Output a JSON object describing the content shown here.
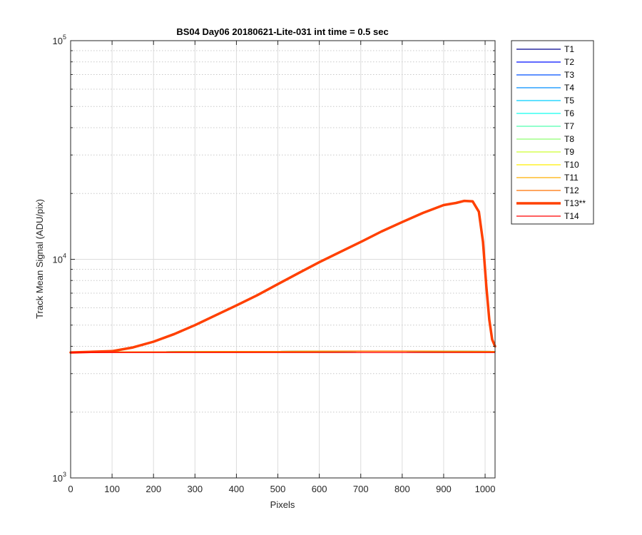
{
  "chart_data": {
    "type": "line",
    "title": "BS04 Day06 20180621-Lite-031 int time = 0.5 sec",
    "xlabel": "Pixels",
    "ylabel": "Track Mean Signal (ADU/pix)",
    "xlim": [
      0,
      1024
    ],
    "ylim": [
      1000,
      100000
    ],
    "yscale": "log",
    "grid": true,
    "legend_position": "outside-top-right",
    "x_ticks": [
      {
        "v": 0,
        "label": "0"
      },
      {
        "v": 100,
        "label": "100"
      },
      {
        "v": 200,
        "label": "200"
      },
      {
        "v": 300,
        "label": "300"
      },
      {
        "v": 400,
        "label": "400"
      },
      {
        "v": 500,
        "label": "500"
      },
      {
        "v": 600,
        "label": "600"
      },
      {
        "v": 700,
        "label": "700"
      },
      {
        "v": 800,
        "label": "800"
      },
      {
        "v": 900,
        "label": "900"
      },
      {
        "v": 1000,
        "label": "1000"
      }
    ],
    "y_ticks": [
      {
        "v": 1000,
        "base": "10",
        "exp": "3"
      },
      {
        "v": 10000,
        "base": "10",
        "exp": "4"
      },
      {
        "v": 100000,
        "base": "10",
        "exp": "5"
      }
    ],
    "series": [
      {
        "name": "T1",
        "color": "#00008f",
        "width": 1.3,
        "x": [
          0,
          100,
          300,
          500,
          700,
          800,
          900,
          1024
        ],
        "y": [
          3750,
          3765,
          3780,
          3790,
          3800,
          3800,
          3795,
          3790
        ]
      },
      {
        "name": "T2",
        "color": "#0010ff",
        "width": 1.3,
        "x": [
          0,
          100,
          300,
          500,
          700,
          800,
          900,
          1024
        ],
        "y": [
          3750,
          3765,
          3780,
          3790,
          3800,
          3800,
          3795,
          3790
        ]
      },
      {
        "name": "T3",
        "color": "#0050ff",
        "width": 1.3,
        "x": [
          0,
          100,
          300,
          500,
          700,
          800,
          900,
          1024
        ],
        "y": [
          3750,
          3765,
          3780,
          3790,
          3800,
          3800,
          3795,
          3790
        ]
      },
      {
        "name": "T4",
        "color": "#008fff",
        "width": 1.3,
        "x": [
          0,
          100,
          300,
          500,
          700,
          800,
          900,
          1024
        ],
        "y": [
          3750,
          3765,
          3780,
          3790,
          3800,
          3800,
          3795,
          3790
        ]
      },
      {
        "name": "T5",
        "color": "#00cfff",
        "width": 1.3,
        "x": [
          0,
          100,
          300,
          500,
          700,
          800,
          900,
          1024
        ],
        "y": [
          3750,
          3765,
          3780,
          3790,
          3800,
          3800,
          3795,
          3790
        ]
      },
      {
        "name": "T6",
        "color": "#10ffef",
        "width": 1.3,
        "x": [
          0,
          100,
          300,
          500,
          700,
          800,
          900,
          1024
        ],
        "y": [
          3750,
          3765,
          3780,
          3790,
          3800,
          3800,
          3795,
          3790
        ]
      },
      {
        "name": "T7",
        "color": "#50ffaf",
        "width": 1.3,
        "x": [
          0,
          100,
          300,
          500,
          700,
          800,
          900,
          1024
        ],
        "y": [
          3750,
          3765,
          3780,
          3790,
          3800,
          3800,
          3795,
          3790
        ]
      },
      {
        "name": "T8",
        "color": "#8fff70",
        "width": 1.3,
        "x": [
          0,
          100,
          300,
          500,
          700,
          800,
          900,
          1024
        ],
        "y": [
          3750,
          3765,
          3780,
          3790,
          3800,
          3800,
          3795,
          3790
        ]
      },
      {
        "name": "T9",
        "color": "#cfff30",
        "width": 1.3,
        "x": [
          0,
          100,
          300,
          500,
          700,
          800,
          900,
          1024
        ],
        "y": [
          3750,
          3765,
          3780,
          3790,
          3800,
          3800,
          3795,
          3790
        ]
      },
      {
        "name": "T10",
        "color": "#ffef00",
        "width": 1.3,
        "x": [
          0,
          100,
          300,
          500,
          700,
          800,
          900,
          1024
        ],
        "y": [
          3750,
          3765,
          3780,
          3790,
          3800,
          3800,
          3795,
          3790
        ]
      },
      {
        "name": "T11",
        "color": "#ffaf00",
        "width": 1.3,
        "x": [
          0,
          100,
          300,
          500,
          700,
          800,
          900,
          1024
        ],
        "y": [
          3750,
          3765,
          3780,
          3790,
          3800,
          3800,
          3795,
          3790
        ]
      },
      {
        "name": "T12",
        "color": "#ff7000",
        "width": 1.3,
        "x": [
          0,
          100,
          300,
          500,
          700,
          800,
          900,
          1024
        ],
        "y": [
          3750,
          3765,
          3780,
          3790,
          3800,
          3800,
          3795,
          3790
        ]
      },
      {
        "name": "T13**",
        "color": "#ff4000",
        "width": 3.5,
        "x": [
          0,
          100,
          150,
          200,
          250,
          300,
          350,
          400,
          450,
          500,
          550,
          600,
          650,
          700,
          750,
          800,
          850,
          900,
          930,
          950,
          970,
          985,
          995,
          1003,
          1010,
          1017,
          1024
        ],
        "y": [
          3750,
          3800,
          3950,
          4200,
          4550,
          5000,
          5550,
          6150,
          6850,
          7700,
          8650,
          9700,
          10800,
          12000,
          13400,
          14800,
          16300,
          17700,
          18100,
          18500,
          18400,
          16500,
          12000,
          7500,
          5300,
          4300,
          4000
        ]
      },
      {
        "name": "T14",
        "color": "#ff0000",
        "width": 1.3,
        "x": [
          0,
          100,
          300,
          500,
          700,
          800,
          900,
          1024
        ],
        "y": [
          3740,
          3745,
          3745,
          3745,
          3745,
          3745,
          3745,
          3745
        ]
      }
    ]
  }
}
